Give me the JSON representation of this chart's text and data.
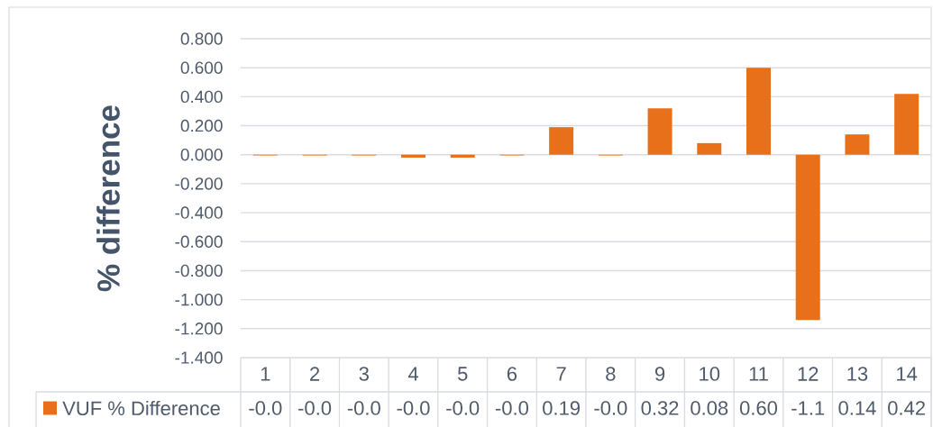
{
  "chart_data": {
    "type": "bar",
    "ylabel": "% difference",
    "categories": [
      "1",
      "2",
      "3",
      "4",
      "5",
      "6",
      "7",
      "8",
      "9",
      "10",
      "11",
      "12",
      "13",
      "14"
    ],
    "series": [
      {
        "name": "VUF % Difference",
        "color": "#e8701a",
        "values": [
          -0.005,
          -0.005,
          -0.005,
          -0.02,
          -0.02,
          -0.005,
          0.19,
          -0.005,
          0.32,
          0.08,
          0.6,
          -1.14,
          0.14,
          0.42
        ],
        "value_labels": [
          "-0.0",
          "-0.0",
          "-0.0",
          "-0.0",
          "-0.0",
          "-0.0",
          "0.19",
          "-0.0",
          "0.32",
          "0.08",
          "0.60",
          "-1.1",
          "0.14",
          "0.42"
        ]
      }
    ],
    "ylim": [
      -1.4,
      0.8
    ],
    "yticks": [
      {
        "value": -1.4,
        "label": "-1.400"
      },
      {
        "value": -1.2,
        "label": "-1.200"
      },
      {
        "value": -1.0,
        "label": "-1.000"
      },
      {
        "value": -0.8,
        "label": "-0.800"
      },
      {
        "value": -0.6,
        "label": "-0.600"
      },
      {
        "value": -0.4,
        "label": "-0.400"
      },
      {
        "value": -0.2,
        "label": "-0.200"
      },
      {
        "value": 0,
        "label": "0.000"
      },
      {
        "value": 0.2,
        "label": "0.200"
      },
      {
        "value": 0.4,
        "label": "0.400"
      },
      {
        "value": 0.6,
        "label": "0.600"
      },
      {
        "value": 0.8,
        "label": "0.800"
      }
    ],
    "grid": "y",
    "legend": "bottom"
  }
}
